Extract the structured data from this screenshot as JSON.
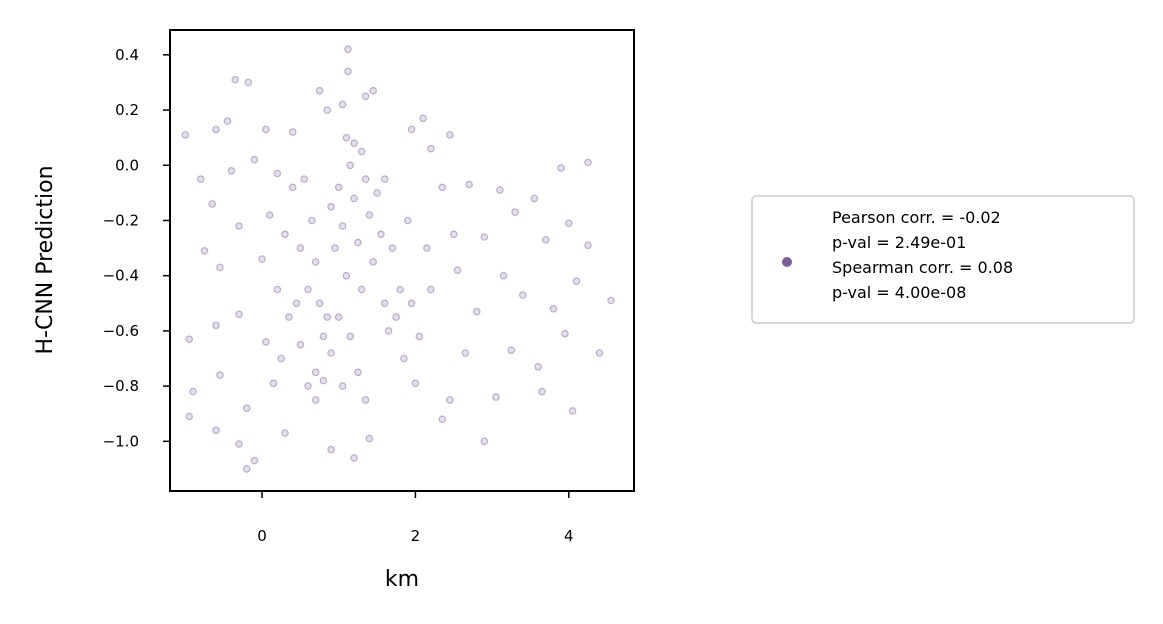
{
  "chart_data": {
    "type": "scatter",
    "title": "",
    "xlabel": "km",
    "ylabel": "H-CNN Prediction",
    "xlim": [
      -1.2,
      4.85
    ],
    "ylim": [
      -1.18,
      0.49
    ],
    "x_ticks": [
      0,
      2,
      4
    ],
    "y_ticks": [
      0.4,
      0.2,
      0.0,
      -0.2,
      -0.4,
      -0.6,
      -0.8,
      -1.0
    ],
    "x_tick_labels": [
      "0",
      "2",
      "4"
    ],
    "y_tick_labels": [
      "0.4",
      "0.2",
      "0.0",
      "−0.2",
      "−0.4",
      "−0.6",
      "−0.8",
      "−1.0"
    ],
    "grid": false,
    "legend_position": "right, outside plot",
    "marker_color": "#7b5e9a",
    "marker_alpha": 0.2,
    "legend": {
      "lines": [
        "Pearson corr. = -0.02",
        "p-val = 2.49e-01",
        "Spearman corr. = 0.08",
        "p-val = 4.00e-08"
      ]
    },
    "series": [
      {
        "points": [
          [
            -1.0,
            0.11
          ],
          [
            -0.35,
            0.31
          ],
          [
            -0.18,
            0.3
          ],
          [
            0.75,
            0.27
          ],
          [
            1.12,
            0.42
          ],
          [
            1.12,
            0.34
          ],
          [
            1.35,
            0.25
          ],
          [
            1.45,
            0.27
          ],
          [
            1.05,
            0.22
          ],
          [
            0.85,
            0.2
          ],
          [
            -0.45,
            0.16
          ],
          [
            -0.6,
            0.13
          ],
          [
            0.05,
            0.13
          ],
          [
            0.4,
            0.12
          ],
          [
            2.1,
            0.17
          ],
          [
            2.45,
            0.11
          ],
          [
            1.95,
            0.13
          ],
          [
            2.2,
            0.06
          ],
          [
            3.9,
            -0.01
          ],
          [
            4.25,
            0.01
          ],
          [
            -0.8,
            -0.05
          ],
          [
            -0.4,
            -0.02
          ],
          [
            -0.1,
            0.02
          ],
          [
            0.2,
            -0.03
          ],
          [
            2.7,
            -0.07
          ],
          [
            3.1,
            -0.09
          ],
          [
            2.35,
            -0.08
          ],
          [
            3.55,
            -0.12
          ],
          [
            3.3,
            -0.17
          ],
          [
            4.0,
            -0.21
          ],
          [
            -0.65,
            -0.14
          ],
          [
            -0.3,
            -0.22
          ],
          [
            0.1,
            -0.18
          ],
          [
            2.5,
            -0.25
          ],
          [
            2.9,
            -0.26
          ],
          [
            3.7,
            -0.27
          ],
          [
            4.25,
            -0.29
          ],
          [
            2.15,
            -0.3
          ],
          [
            2.55,
            -0.38
          ],
          [
            3.15,
            -0.4
          ],
          [
            -0.75,
            -0.31
          ],
          [
            -0.55,
            -0.37
          ],
          [
            0.0,
            -0.34
          ],
          [
            0.2,
            -0.45
          ],
          [
            2.2,
            -0.45
          ],
          [
            3.4,
            -0.47
          ],
          [
            4.1,
            -0.42
          ],
          [
            4.55,
            -0.49
          ],
          [
            3.8,
            -0.52
          ],
          [
            2.8,
            -0.53
          ],
          [
            -0.95,
            -0.63
          ],
          [
            -0.6,
            -0.58
          ],
          [
            -0.3,
            -0.54
          ],
          [
            0.05,
            -0.64
          ],
          [
            2.05,
            -0.62
          ],
          [
            2.65,
            -0.68
          ],
          [
            3.25,
            -0.67
          ],
          [
            3.95,
            -0.61
          ],
          [
            4.4,
            -0.68
          ],
          [
            3.6,
            -0.73
          ],
          [
            -0.9,
            -0.82
          ],
          [
            -0.55,
            -0.76
          ],
          [
            -0.2,
            -0.88
          ],
          [
            0.15,
            -0.79
          ],
          [
            2.0,
            -0.79
          ],
          [
            2.45,
            -0.85
          ],
          [
            3.05,
            -0.84
          ],
          [
            3.65,
            -0.82
          ],
          [
            4.05,
            -0.89
          ],
          [
            2.35,
            -0.92
          ],
          [
            -0.95,
            -0.91
          ],
          [
            -0.6,
            -0.96
          ],
          [
            -0.3,
            -1.01
          ],
          [
            -0.1,
            -1.07
          ],
          [
            -0.2,
            -1.1
          ],
          [
            0.3,
            -0.97
          ],
          [
            1.2,
            -1.06
          ],
          [
            0.9,
            -1.03
          ],
          [
            1.4,
            -0.99
          ],
          [
            2.9,
            -1.0
          ],
          [
            0.55,
            -0.05
          ],
          [
            0.65,
            -0.2
          ],
          [
            0.7,
            -0.35
          ],
          [
            0.75,
            -0.5
          ],
          [
            0.8,
            -0.62
          ],
          [
            0.7,
            -0.75
          ],
          [
            0.6,
            -0.45
          ],
          [
            0.9,
            -0.15
          ],
          [
            0.95,
            -0.3
          ],
          [
            0.85,
            -0.55
          ],
          [
            1.0,
            -0.08
          ],
          [
            1.05,
            -0.22
          ],
          [
            1.1,
            -0.4
          ],
          [
            1.15,
            0.0
          ],
          [
            1.2,
            -0.12
          ],
          [
            1.25,
            -0.28
          ],
          [
            1.3,
            -0.45
          ],
          [
            1.35,
            -0.05
          ],
          [
            1.4,
            -0.18
          ],
          [
            1.45,
            -0.35
          ],
          [
            1.5,
            -0.1
          ],
          [
            1.55,
            -0.25
          ],
          [
            1.6,
            -0.5
          ],
          [
            1.65,
            -0.6
          ],
          [
            1.2,
            0.08
          ],
          [
            1.1,
            0.1
          ],
          [
            1.3,
            0.05
          ],
          [
            1.0,
            -0.55
          ],
          [
            0.9,
            -0.68
          ],
          [
            1.15,
            -0.62
          ],
          [
            0.6,
            -0.8
          ],
          [
            0.7,
            -0.85
          ],
          [
            0.8,
            -0.78
          ],
          [
            1.7,
            -0.3
          ],
          [
            1.8,
            -0.45
          ],
          [
            1.75,
            -0.55
          ],
          [
            0.5,
            -0.3
          ],
          [
            0.45,
            -0.5
          ],
          [
            0.5,
            -0.65
          ],
          [
            1.9,
            -0.2
          ],
          [
            1.85,
            -0.7
          ],
          [
            1.95,
            -0.5
          ],
          [
            0.3,
            -0.25
          ],
          [
            0.35,
            -0.55
          ],
          [
            0.25,
            -0.7
          ],
          [
            1.25,
            -0.75
          ],
          [
            1.35,
            -0.85
          ],
          [
            1.05,
            -0.8
          ],
          [
            0.4,
            -0.08
          ],
          [
            1.6,
            -0.05
          ]
        ]
      }
    ]
  }
}
